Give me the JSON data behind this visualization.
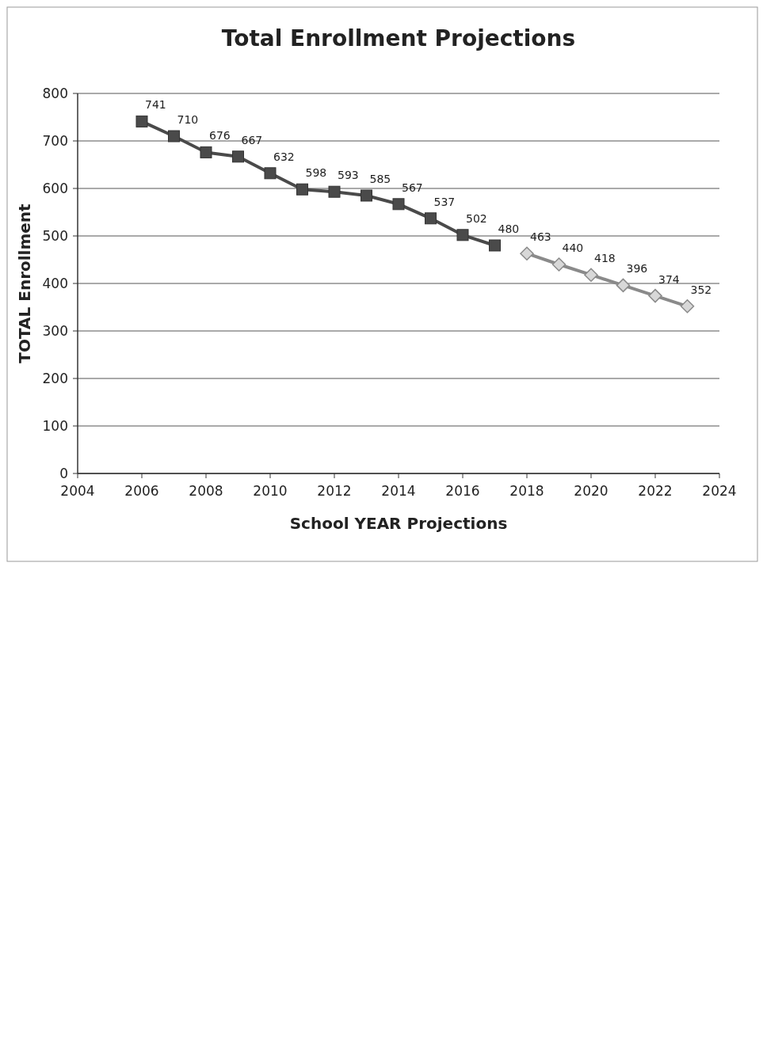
{
  "chart_data": {
    "type": "line",
    "title": "Total Enrollment Projections",
    "xlabel": "School YEAR Projections",
    "ylabel": "TOTAL Enrollment",
    "xlim": [
      2004,
      2024
    ],
    "xticks": [
      2004,
      2006,
      2008,
      2010,
      2012,
      2014,
      2016,
      2018,
      2020,
      2022,
      2024
    ],
    "ylim": [
      0,
      800
    ],
    "yticks": [
      0,
      100,
      200,
      300,
      400,
      500,
      600,
      700,
      800
    ],
    "grid": "y",
    "data_labels": true,
    "line_style": "solid",
    "series": [
      {
        "color": "#4a4a4a",
        "marker": "square",
        "x": [
          2006,
          2007,
          2008,
          2009,
          2010,
          2011,
          2012,
          2013,
          2014,
          2015,
          2016,
          2017
        ],
        "values": [
          741,
          710,
          676,
          667,
          632,
          598,
          593,
          585,
          567,
          537,
          502,
          480
        ]
      },
      {
        "color": "#8a8a8a",
        "marker": "diamond",
        "x": [
          2018,
          2019,
          2020,
          2021,
          2022,
          2023
        ],
        "values": [
          463,
          440,
          418,
          396,
          374,
          352
        ]
      }
    ]
  }
}
